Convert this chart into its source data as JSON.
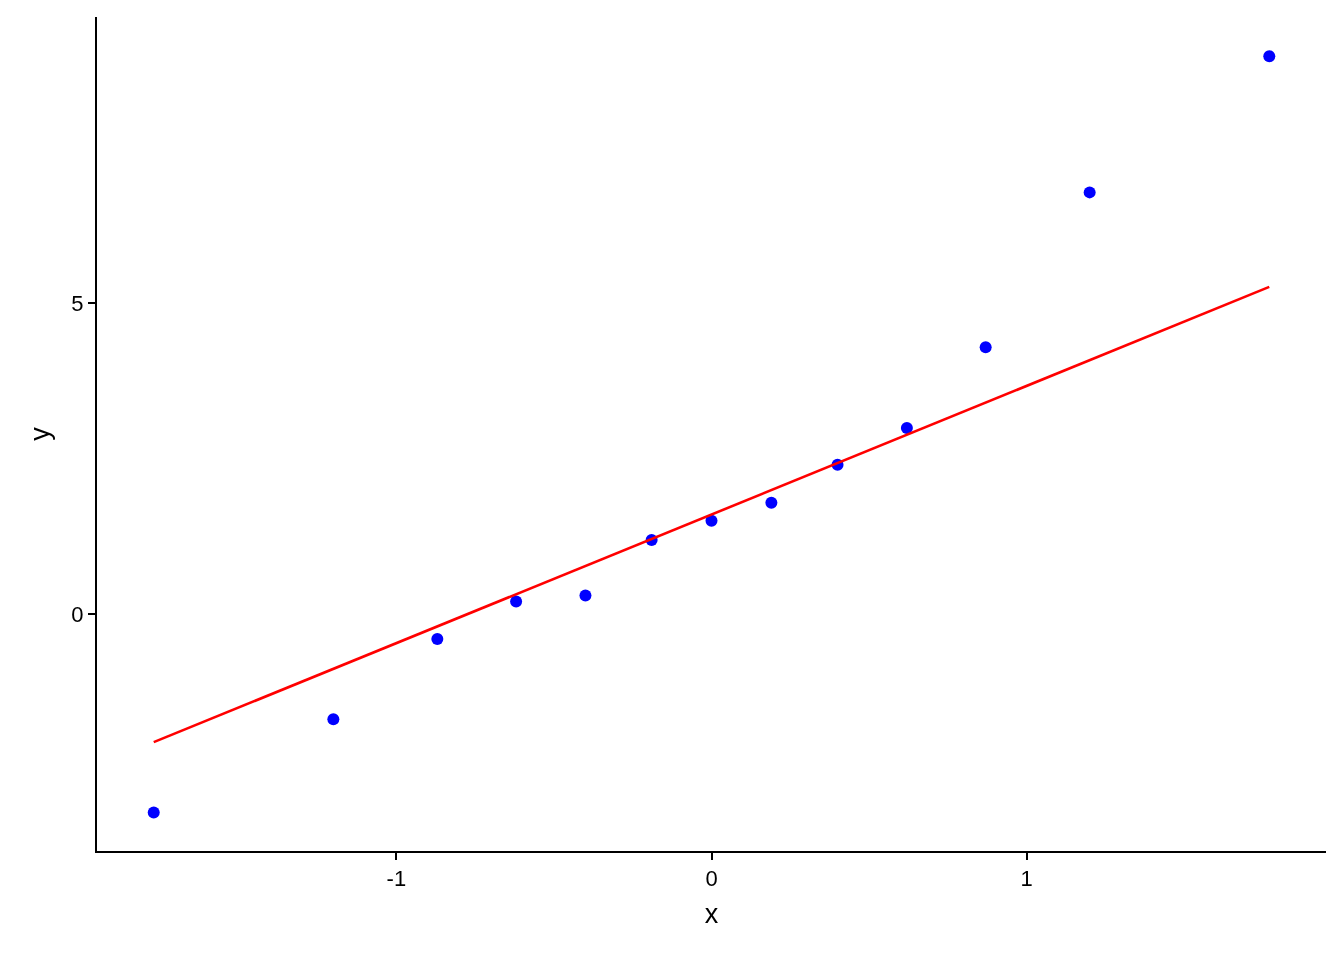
{
  "chart_data": {
    "type": "scatter",
    "xlabel": "x",
    "ylabel": "y",
    "xlim": [
      -1.95,
      1.95
    ],
    "ylim": [
      -3.81,
      9.6
    ],
    "xticks": [
      -1,
      0,
      1
    ],
    "yticks": [
      0,
      5
    ],
    "series": [
      {
        "color": "#0000ff",
        "marker": "circle",
        "x": [
          -1.77,
          -1.2,
          -0.87,
          -0.62,
          -0.4,
          -0.19,
          0,
          0.19,
          0.4,
          0.62,
          0.87,
          1.2,
          1.77
        ],
        "values": [
          -3.19,
          -1.69,
          -0.4,
          0.2,
          0.3,
          1.19,
          1.5,
          1.79,
          2.4,
          2.99,
          4.29,
          6.78,
          8.97
        ]
      },
      {
        "type": "line",
        "color": "#ff0000",
        "line_style": "solid",
        "x": [
          -1.77,
          1.77
        ],
        "values": [
          -2.06,
          5.26
        ]
      }
    ]
  }
}
